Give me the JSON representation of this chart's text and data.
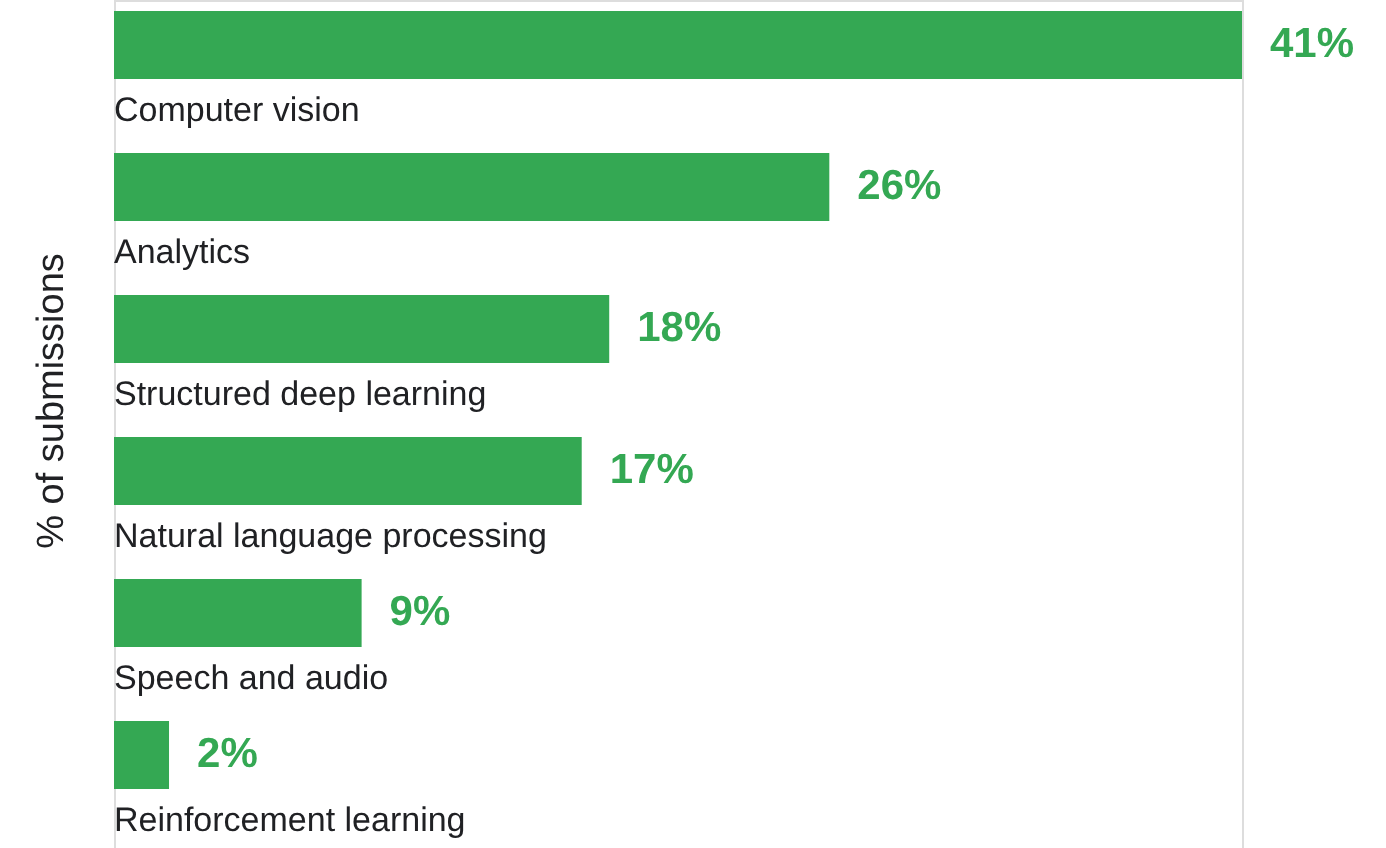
{
  "chart_data": {
    "type": "bar",
    "orientation": "horizontal",
    "ylabel": "% of submissions",
    "categories": [
      "Computer vision",
      "Analytics",
      "Structured deep learning",
      "Natural language processing",
      "Speech and audio",
      "Reinforcement learning"
    ],
    "values": [
      41,
      26,
      18,
      17,
      9,
      2
    ],
    "value_labels": [
      "41%",
      "26%",
      "18%",
      "17%",
      "9%",
      "2%"
    ],
    "color": "#34a853"
  }
}
